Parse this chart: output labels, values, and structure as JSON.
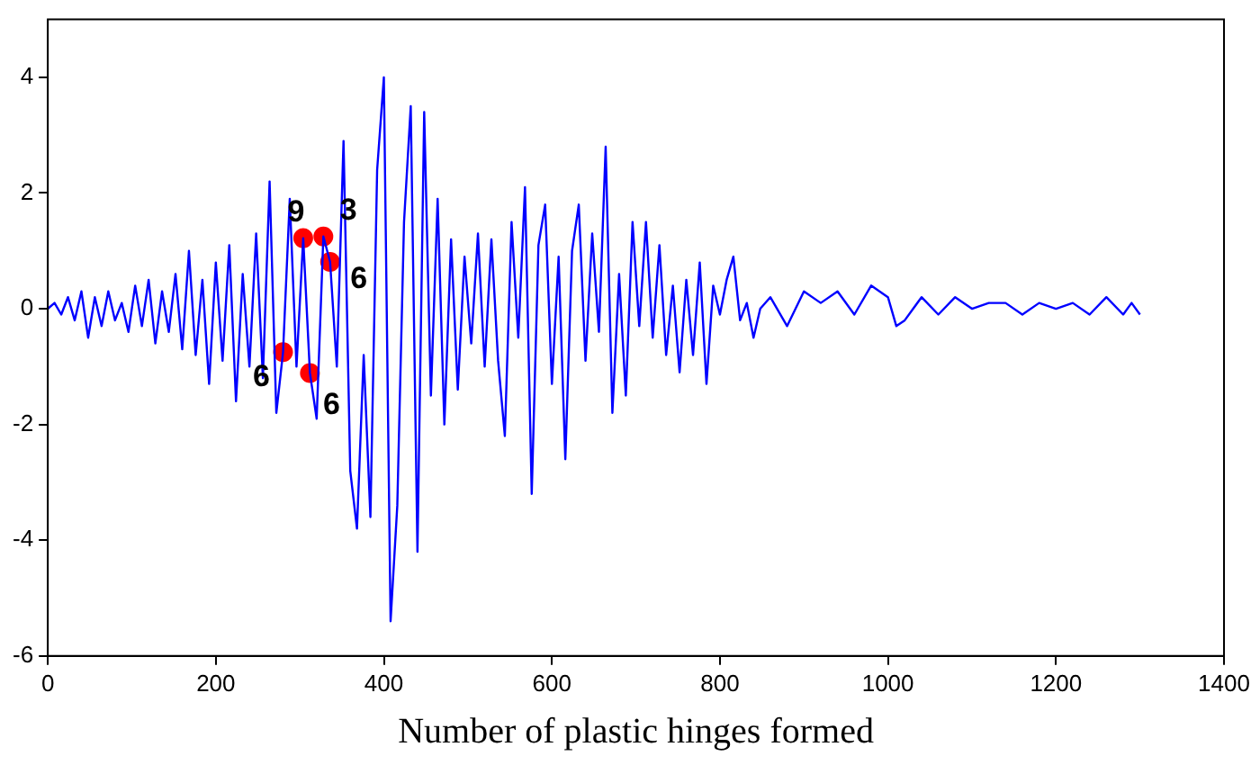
{
  "chart_data": {
    "type": "line",
    "xlabel": "Number of plastic hinges formed",
    "xlim": [
      0,
      1400
    ],
    "xticks": [
      0,
      200,
      400,
      600,
      800,
      1000,
      1200,
      1400
    ],
    "ylim": [
      -6,
      5
    ],
    "yticks": [
      -6,
      -4,
      -2,
      0,
      2,
      4
    ],
    "grid": false,
    "legend": false,
    "marker": "none",
    "line_style": "solid",
    "series": [
      {
        "type": "line",
        "color": "#0000ff",
        "x": [
          0,
          8,
          16,
          24,
          32,
          40,
          48,
          56,
          64,
          72,
          80,
          88,
          96,
          104,
          112,
          120,
          128,
          136,
          144,
          152,
          160,
          168,
          176,
          184,
          192,
          200,
          208,
          216,
          224,
          232,
          240,
          248,
          256,
          264,
          272,
          280,
          288,
          296,
          304,
          312,
          320,
          328,
          336,
          344,
          352,
          360,
          368,
          376,
          384,
          392,
          400,
          408,
          416,
          424,
          432,
          440,
          448,
          456,
          464,
          472,
          480,
          488,
          496,
          504,
          512,
          520,
          528,
          536,
          544,
          552,
          560,
          568,
          576,
          584,
          592,
          600,
          608,
          616,
          624,
          632,
          640,
          648,
          656,
          664,
          672,
          680,
          688,
          696,
          704,
          712,
          720,
          728,
          736,
          744,
          752,
          760,
          768,
          776,
          784,
          792,
          800,
          808,
          816,
          824,
          832,
          840,
          848,
          860,
          880,
          900,
          920,
          940,
          960,
          980,
          1000,
          1010,
          1020,
          1040,
          1060,
          1080,
          1100,
          1120,
          1140,
          1160,
          1180,
          1200,
          1220,
          1240,
          1260,
          1280,
          1290,
          1300
        ],
        "values": [
          0,
          0.1,
          -0.1,
          0.2,
          -0.2,
          0.3,
          -0.5,
          0.2,
          -0.3,
          0.3,
          -0.2,
          0.1,
          -0.4,
          0.4,
          -0.3,
          0.5,
          -0.6,
          0.3,
          -0.4,
          0.6,
          -0.7,
          1.0,
          -0.8,
          0.5,
          -1.3,
          0.8,
          -0.9,
          1.1,
          -1.6,
          0.6,
          -1.0,
          1.3,
          -1.2,
          2.2,
          -1.8,
          -0.75,
          1.9,
          -1.0,
          1.22,
          -1.11,
          -1.9,
          1.25,
          0.81,
          -1.0,
          2.9,
          -2.8,
          -3.8,
          -0.8,
          -3.6,
          2.4,
          4.0,
          -5.4,
          -3.4,
          1.5,
          3.5,
          -4.2,
          3.4,
          -1.5,
          1.9,
          -2.0,
          1.2,
          -1.4,
          0.9,
          -0.6,
          1.3,
          -1.0,
          1.2,
          -0.9,
          -2.2,
          1.5,
          -0.5,
          2.1,
          -3.2,
          1.1,
          1.8,
          -1.3,
          0.9,
          -2.6,
          1.0,
          1.8,
          -0.9,
          1.3,
          -0.4,
          2.8,
          -1.8,
          0.6,
          -1.5,
          1.5,
          -0.3,
          1.5,
          -0.5,
          1.1,
          -0.8,
          0.4,
          -1.1,
          0.5,
          -0.8,
          0.8,
          -1.3,
          0.4,
          -0.1,
          0.5,
          0.9,
          -0.2,
          0.1,
          -0.5,
          0.0,
          0.2,
          -0.3,
          0.3,
          0.1,
          0.3,
          -0.1,
          0.4,
          0.2,
          -0.3,
          -0.2,
          0.2,
          -0.1,
          0.2,
          0.0,
          0.1,
          0.1,
          -0.1,
          0.1,
          0.0,
          0.1,
          -0.1,
          0.2,
          -0.1,
          0.1,
          -0.1
        ]
      },
      {
        "type": "scatter",
        "color": "#ff0000",
        "marker": "circle",
        "x": [
          280,
          304,
          328,
          336,
          312
        ],
        "values": [
          -0.75,
          1.22,
          1.25,
          0.81,
          -1.11
        ]
      }
    ],
    "annotations": [
      {
        "text": "9",
        "x": 304,
        "y": 1.22
      },
      {
        "text": "3",
        "x": 328,
        "y": 1.25
      },
      {
        "text": "6",
        "x": 336,
        "y": 0.81
      },
      {
        "text": "6",
        "x": 280,
        "y": -0.75
      },
      {
        "text": "6",
        "x": 312,
        "y": -1.11
      }
    ]
  }
}
